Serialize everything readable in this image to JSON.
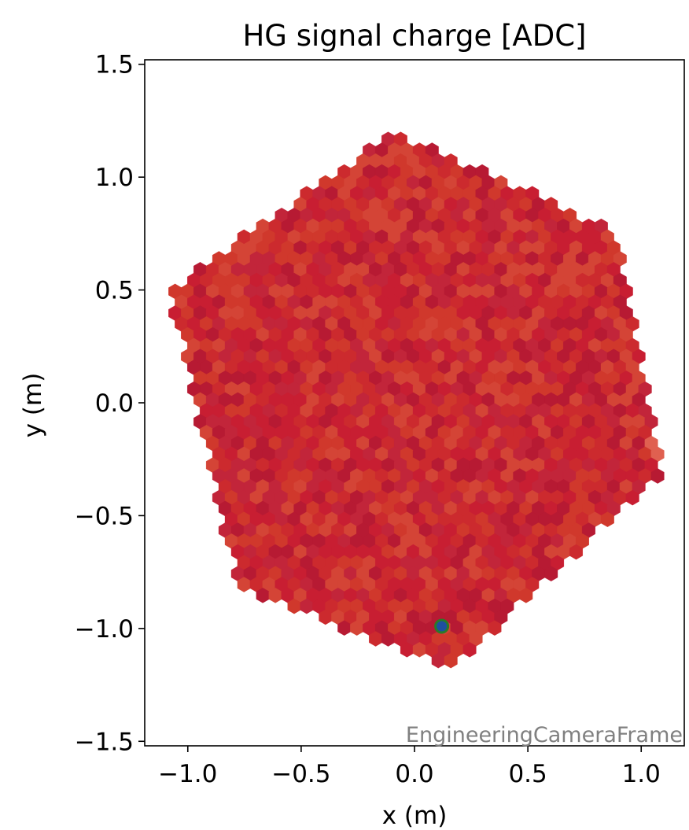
{
  "chart_data": {
    "type": "heatmap",
    "title": "HG signal charge [ADC]",
    "xlabel": "x  (m)",
    "ylabel": "y  (m)",
    "xlim": [
      -1.19,
      1.19
    ],
    "ylim": [
      -1.52,
      1.52
    ],
    "x_ticks": [
      -1.0,
      -0.5,
      0.0,
      0.5,
      1.0
    ],
    "x_tick_labels": [
      "−1.0",
      "−0.5",
      "0.0",
      "0.5",
      "1.0"
    ],
    "y_ticks": [
      1.5,
      1.0,
      0.5,
      0.0,
      -0.5,
      -1.0,
      -1.5
    ],
    "y_tick_labels": [
      "1.5",
      "1.0",
      "0.5",
      "0.0",
      "−0.5",
      "−1.0",
      "−1.5"
    ],
    "camera": {
      "shape": "hexagonal pixel grid",
      "vertices_m": [
        [
          -0.1,
          1.2
        ],
        [
          0.9,
          0.76
        ],
        [
          1.1,
          -0.3
        ],
        [
          0.16,
          -1.18
        ],
        [
          -0.78,
          -0.82
        ],
        [
          -1.08,
          0.5
        ]
      ],
      "value_description": "near-uniform charge across all pixels",
      "colors": [
        "#c81e32",
        "#cc2a2e",
        "#d0382c",
        "#c2253a",
        "#d44436",
        "#b71a33"
      ],
      "hot_pixel_color": "#e06050"
    },
    "highlighted_pixel": {
      "x": 0.12,
      "y": -0.99,
      "fill": "#1f4fa0",
      "edge": "#2a7a2a"
    },
    "grid": false,
    "frame_label": "EngineeringCameraFrame"
  }
}
